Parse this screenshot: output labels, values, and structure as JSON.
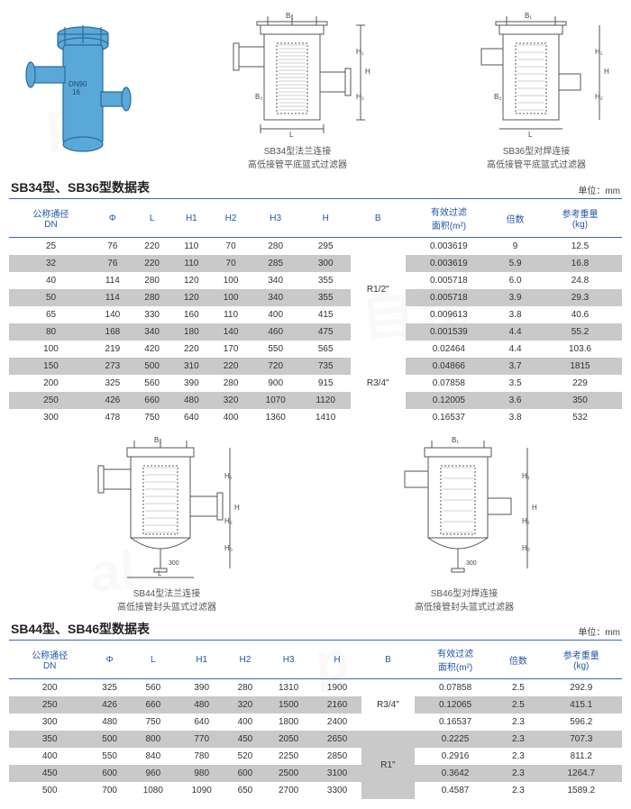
{
  "watermark_color": "rgba(200,180,150,0.08)",
  "diagram1": {
    "label_line1": "",
    "label_line2": "",
    "fill": "#5aa8d8",
    "stroke": "#2a6a9a",
    "text1": "DN90",
    "text2": "16"
  },
  "diagram2": {
    "label_line1": "SB34型法兰连接",
    "label_line2": "高低接管平底篮式过滤器",
    "dims": [
      "B₁",
      "B₂",
      "L",
      "H",
      "H₁",
      "H₂"
    ]
  },
  "diagram3": {
    "label_line1": "SB36型对焊连接",
    "label_line2": "高低接管平底篮式过滤器",
    "dims": [
      "B₁",
      "B₂",
      "L",
      "H",
      "H₁",
      "H₂"
    ]
  },
  "diagram4": {
    "label_line1": "SB44型法兰连接",
    "label_line2": "高低接管封头篮式过滤器",
    "dims": [
      "B₁",
      "L",
      "H",
      "H₁",
      "H₂",
      "H₃",
      "300"
    ]
  },
  "diagram5": {
    "label_line1": "SB46型对焊连接",
    "label_line2": "高低接管封头篮式过滤器",
    "dims": [
      "B₁",
      "L",
      "H",
      "H₁",
      "H₂",
      "H₃",
      "300"
    ]
  },
  "table1": {
    "title": "SB34型、SB36型数据表",
    "unit": "单位：mm",
    "headers": [
      "公称通径\nDN",
      "Φ",
      "L",
      "H1",
      "H2",
      "H3",
      "H",
      "B",
      "有效过滤\n面积(m²)",
      "倍数",
      "参考重量\n(kg)"
    ],
    "b_groups": [
      {
        "label": "R1/2\"",
        "span": 6
      },
      {
        "label": "R3/4\"",
        "span": 5
      }
    ],
    "rows": [
      [
        "25",
        "76",
        "220",
        "110",
        "70",
        "280",
        "295",
        "0.003619",
        "9",
        "12.5"
      ],
      [
        "32",
        "76",
        "220",
        "110",
        "70",
        "285",
        "300",
        "0.003619",
        "5.9",
        "16.8"
      ],
      [
        "40",
        "114",
        "280",
        "120",
        "100",
        "340",
        "355",
        "0.005718",
        "6.0",
        "24.8"
      ],
      [
        "50",
        "114",
        "280",
        "120",
        "100",
        "340",
        "355",
        "0.005718",
        "3.9",
        "29.3"
      ],
      [
        "65",
        "140",
        "330",
        "160",
        "110",
        "400",
        "415",
        "0.009613",
        "3.8",
        "40.6"
      ],
      [
        "80",
        "168",
        "340",
        "180",
        "140",
        "460",
        "475",
        "0.001539",
        "4.4",
        "55.2"
      ],
      [
        "100",
        "219",
        "420",
        "220",
        "170",
        "550",
        "565",
        "0.02464",
        "4.4",
        "103.6"
      ],
      [
        "150",
        "273",
        "500",
        "310",
        "220",
        "720",
        "735",
        "0.04866",
        "3.7",
        "1815"
      ],
      [
        "200",
        "325",
        "560",
        "390",
        "280",
        "900",
        "915",
        "0.07858",
        "3.5",
        "229"
      ],
      [
        "250",
        "426",
        "660",
        "480",
        "320",
        "1070",
        "1120",
        "0.12005",
        "3.6",
        "350"
      ],
      [
        "300",
        "478",
        "750",
        "640",
        "400",
        "1360",
        "1410",
        "0.16537",
        "3.8",
        "532"
      ]
    ],
    "shade_rows": [
      1,
      3,
      5,
      7,
      9
    ]
  },
  "table2": {
    "title": "SB44型、SB46型数据表",
    "unit": "单位：mm",
    "headers": [
      "公称通径\nDN",
      "Φ",
      "L",
      "H1",
      "H2",
      "H3",
      "H",
      "B",
      "有效过滤\n面积(m²)",
      "倍数",
      "参考重量\n(kg)"
    ],
    "b_groups": [
      {
        "label": "R3/4\"",
        "span": 3
      },
      {
        "label": "R1\"",
        "span": 4
      }
    ],
    "rows": [
      [
        "200",
        "325",
        "560",
        "390",
        "280",
        "1310",
        "1900",
        "0.07858",
        "2.5",
        "292.9"
      ],
      [
        "250",
        "426",
        "660",
        "480",
        "320",
        "1500",
        "2160",
        "0.12065",
        "2.5",
        "415.1"
      ],
      [
        "300",
        "480",
        "750",
        "640",
        "400",
        "1800",
        "2400",
        "0.16537",
        "2.3",
        "596.2"
      ],
      [
        "350",
        "500",
        "800",
        "770",
        "450",
        "2050",
        "2650",
        "0.2225",
        "2.3",
        "707.3"
      ],
      [
        "400",
        "550",
        "840",
        "780",
        "520",
        "2250",
        "2850",
        "0.2916",
        "2.3",
        "811.2"
      ],
      [
        "450",
        "600",
        "960",
        "980",
        "600",
        "2500",
        "3100",
        "0.3642",
        "2.3",
        "1264.7"
      ],
      [
        "500",
        "700",
        "1080",
        "1090",
        "650",
        "2700",
        "3300",
        "0.4587",
        "2.3",
        "1589.2"
      ]
    ],
    "shade_rows": [
      1,
      3,
      5
    ]
  },
  "colors": {
    "header_text": "#2456a5",
    "rule": "#3568b5",
    "shade": "#c9c9c9",
    "diagram_stroke": "#555"
  }
}
